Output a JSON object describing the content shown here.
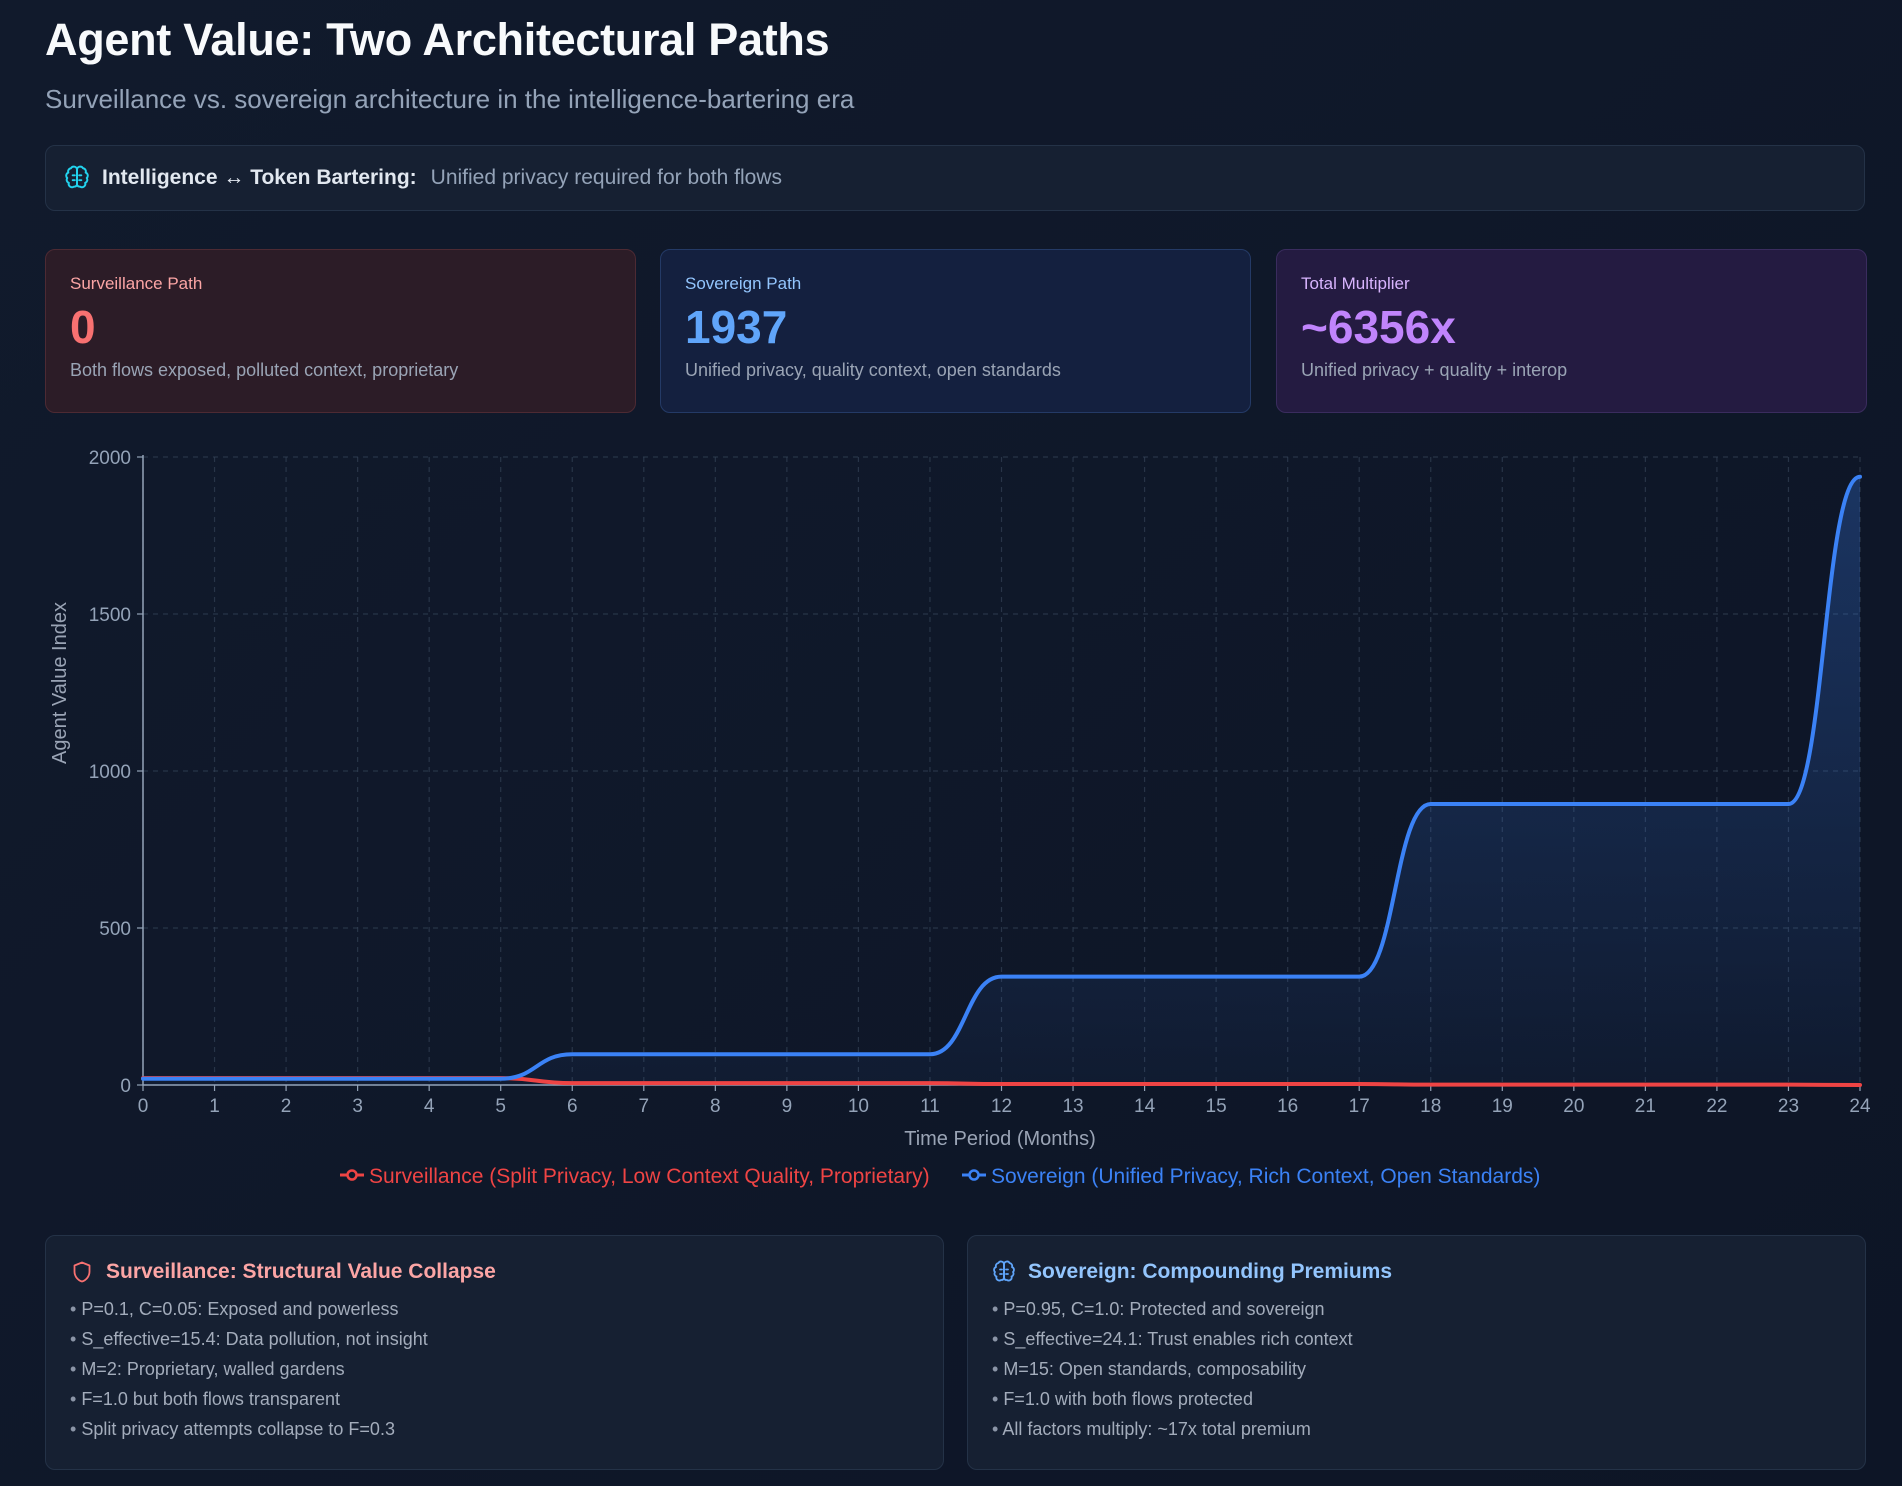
{
  "header": {
    "title": "Agent Value: Two Architectural Paths",
    "subtitle": "Surveillance vs. sovereign architecture in the intelligence-bartering era"
  },
  "banner": {
    "icon": "brain-icon",
    "label": "Intelligence ↔ Token Bartering:",
    "text": "Unified privacy required for both flows"
  },
  "cards": [
    {
      "label": "Surveillance Path",
      "value": "0",
      "desc": "Both flows exposed, polluted context, proprietary"
    },
    {
      "label": "Sovereign Path",
      "value": "1937",
      "desc": "Unified privacy, quality context, open standards"
    },
    {
      "label": "Total Multiplier",
      "value": "~6356x",
      "desc": "Unified privacy + quality + interop"
    }
  ],
  "colors": {
    "surveillance": "#ef4444",
    "sovereign": "#3b82f6",
    "grid": "#334155",
    "axis": "#94a3b8"
  },
  "chart_data": {
    "type": "line",
    "xlabel": "Time Period (Months)",
    "ylabel": "Agent Value Index",
    "xlim": [
      0,
      24
    ],
    "ylim": [
      0,
      2000
    ],
    "x_ticks": [
      0,
      1,
      2,
      3,
      4,
      5,
      6,
      7,
      8,
      9,
      10,
      11,
      12,
      13,
      14,
      15,
      16,
      17,
      18,
      19,
      20,
      21,
      22,
      23,
      24
    ],
    "y_ticks": [
      0,
      500,
      1000,
      1500,
      2000
    ],
    "grid": true,
    "legend_position": "bottom-center",
    "x": [
      0,
      1,
      2,
      3,
      4,
      5,
      6,
      7,
      8,
      9,
      10,
      11,
      12,
      13,
      14,
      15,
      16,
      17,
      18,
      19,
      20,
      21,
      22,
      23,
      24
    ],
    "series": [
      {
        "name": "Surveillance (Split Privacy, Low Context Quality, Proprietary)",
        "values": [
          22,
          22,
          22,
          22,
          22,
          22,
          6,
          6,
          6,
          6,
          6,
          6,
          3,
          3,
          3,
          3,
          3,
          3,
          1,
          1,
          1,
          1,
          1,
          1,
          0
        ]
      },
      {
        "name": "Sovereign (Unified Privacy, Rich Context, Open Standards)",
        "values": [
          20,
          20,
          20,
          20,
          20,
          20,
          98,
          98,
          98,
          98,
          98,
          98,
          345,
          345,
          345,
          345,
          345,
          345,
          895,
          895,
          895,
          895,
          895,
          895,
          1937
        ]
      }
    ]
  },
  "panels": {
    "left": {
      "icon": "shield-icon",
      "title": "Surveillance: Structural Value Collapse",
      "items": [
        "P=0.1, C=0.05: Exposed and powerless",
        "S_effective=15.4: Data pollution, not insight",
        "M=2: Proprietary, walled gardens",
        "F=1.0 but both flows transparent",
        "Split privacy attempts collapse to F=0.3"
      ]
    },
    "right": {
      "icon": "brain-icon",
      "title": "Sovereign: Compounding Premiums",
      "items": [
        "P=0.95, C=1.0: Protected and sovereign",
        "S_effective=24.1: Trust enables rich context",
        "M=15: Open standards, composability",
        "F=1.0 with both flows protected",
        "All factors multiply: ~17x total premium"
      ]
    }
  }
}
